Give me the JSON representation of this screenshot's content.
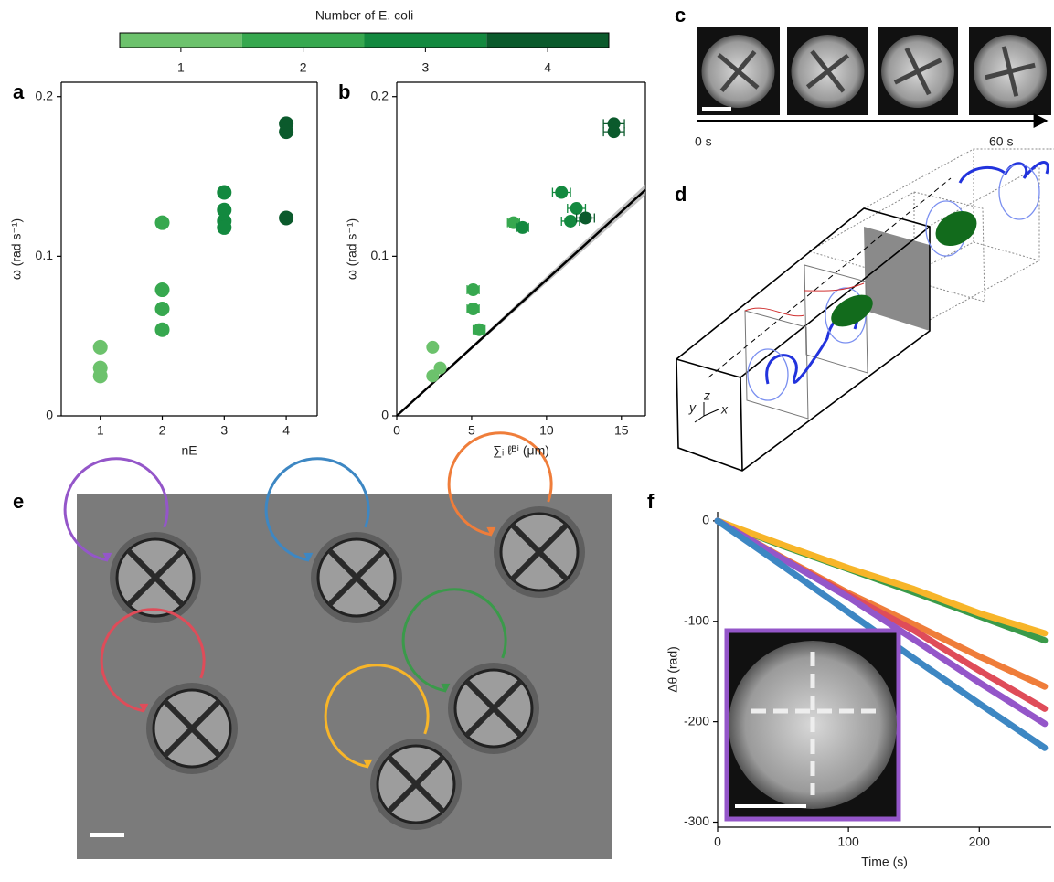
{
  "panels": {
    "labels": [
      "a",
      "b",
      "c",
      "d",
      "e",
      "f"
    ],
    "c": {
      "start": "0 s",
      "end": "60 s"
    },
    "d": {
      "axes": [
        "y",
        "z",
        "x"
      ]
    }
  },
  "chart_data": [
    {
      "type": "colorbar",
      "title": "Number of E. coli",
      "categories": [
        1,
        2,
        3,
        4
      ],
      "colors": [
        "#6cc26c",
        "#37a84f",
        "#13893f",
        "#0b5a2c"
      ]
    },
    {
      "type": "scatter",
      "x_label": "nE",
      "y_label": "ω (rad s⁻¹)",
      "xlim": [
        0.37,
        4.5
      ],
      "ylim": [
        0,
        0.209
      ],
      "xticks": [
        1,
        2,
        3,
        4
      ],
      "yticks": [
        0,
        0.1,
        0.2
      ],
      "box": true,
      "series": [
        {
          "color": "#6cc26c",
          "x": [
            1,
            1,
            1
          ],
          "values": [
            0.043,
            0.03,
            0.025
          ]
        },
        {
          "color": "#37a84f",
          "x": [
            2,
            2,
            2,
            2
          ],
          "values": [
            0.121,
            0.079,
            0.067,
            0.054
          ]
        },
        {
          "color": "#13893f",
          "x": [
            3,
            3,
            3,
            3
          ],
          "values": [
            0.14,
            0.129,
            0.122,
            0.118
          ]
        },
        {
          "color": "#0b5a2c",
          "x": [
            4,
            4,
            4
          ],
          "values": [
            0.183,
            0.178,
            0.124
          ]
        }
      ]
    },
    {
      "type": "scatter",
      "x_label": "∑ᵢ ℓᴮⁱ (μm)",
      "y_label": "ω (rad s⁻¹)",
      "xlim": [
        0,
        16.6
      ],
      "ylim": [
        0,
        0.209
      ],
      "xticks": [
        0,
        5,
        10,
        15
      ],
      "yticks": [
        0,
        0.1,
        0.2
      ],
      "box": true,
      "series": [
        {
          "color": "#6cc26c",
          "x": [
            2.4,
            2.9,
            2.4
          ],
          "values": [
            0.043,
            0.03,
            0.025
          ],
          "xerr": [
            0,
            0,
            0
          ]
        },
        {
          "color": "#37a84f",
          "x": [
            5.1,
            5.1,
            5.5,
            7.8
          ],
          "values": [
            0.079,
            0.067,
            0.054,
            0.121
          ],
          "xerr": [
            0.4,
            0.4,
            0.4,
            0.4
          ]
        },
        {
          "color": "#13893f",
          "x": [
            8.4,
            11.0,
            12.0,
            11.6
          ],
          "values": [
            0.118,
            0.14,
            0.13,
            0.122
          ],
          "xerr": [
            0.4,
            0.6,
            0.6,
            0.6
          ]
        },
        {
          "color": "#0b5a2c",
          "x": [
            12.6,
            14.5,
            14.5
          ],
          "values": [
            0.124,
            0.183,
            0.178
          ],
          "xerr": [
            0.6,
            0.7,
            0.7
          ]
        }
      ],
      "fit": {
        "color": "#000000",
        "x": [
          0,
          16.6
        ],
        "values": [
          0,
          0.1416
        ]
      }
    },
    {
      "type": "line",
      "x_label": "Time (s)",
      "y_label": "Δθ (rad)",
      "xlim": [
        0,
        255
      ],
      "ylim": [
        -305,
        9
      ],
      "xticks": [
        0,
        100,
        200
      ],
      "yticks": [
        0,
        -100,
        -200,
        -300
      ],
      "box": false,
      "x": [
        0,
        50,
        100,
        150,
        200,
        250
      ],
      "series": [
        {
          "color": "#3a9a4a",
          "values": [
            0,
            -25,
            -48,
            -71,
            -95,
            -119
          ]
        },
        {
          "color": "#f7b529",
          "values": [
            0,
            -24,
            -47,
            -68,
            -92,
            -112
          ]
        },
        {
          "color": "#ef7d3a",
          "values": [
            0,
            -37,
            -72,
            -103,
            -135,
            -165
          ]
        },
        {
          "color": "#df4c59",
          "values": [
            0,
            -38,
            -74,
            -109,
            -149,
            -187
          ]
        },
        {
          "color": "#9456c9",
          "values": [
            0,
            -38,
            -76,
            -118,
            -161,
            -202
          ]
        },
        {
          "color": "#3d87c3",
          "values": [
            0,
            -45,
            -91,
            -137,
            -182,
            -226
          ]
        }
      ]
    }
  ]
}
